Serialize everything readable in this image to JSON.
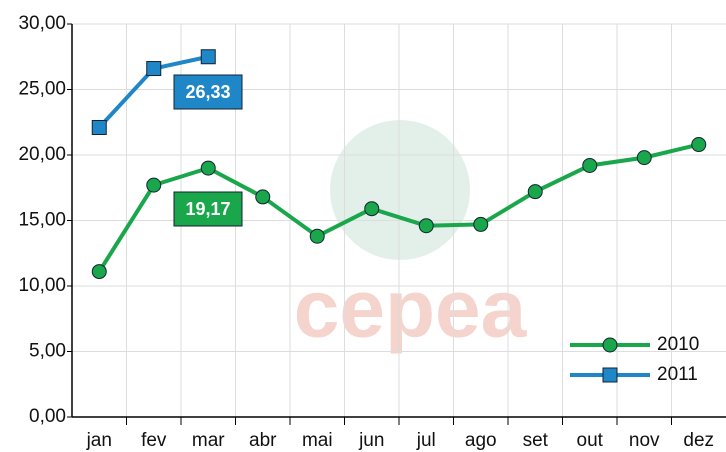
{
  "chart_data": {
    "type": "line",
    "categories": [
      "jan",
      "fev",
      "mar",
      "abr",
      "mai",
      "jun",
      "jul",
      "ago",
      "set",
      "out",
      "nov",
      "dez"
    ],
    "series": [
      {
        "name": "2010",
        "color": "#1aa64a",
        "marker": "circle",
        "values": [
          11.1,
          17.7,
          19.0,
          16.8,
          13.8,
          15.9,
          14.6,
          14.7,
          17.2,
          19.2,
          19.8,
          20.8
        ]
      },
      {
        "name": "2011",
        "color": "#1f87c8",
        "marker": "square",
        "values": [
          22.1,
          26.6,
          27.5,
          null,
          null,
          null,
          null,
          null,
          null,
          null,
          null,
          null
        ]
      }
    ],
    "annotations": [
      {
        "text": "26,33",
        "color": "#1f87c8"
      },
      {
        "text": "19,17",
        "color": "#1aa64a"
      }
    ],
    "watermark": "cepea",
    "ylim": [
      0,
      30
    ],
    "yticks": [
      {
        "value": 0,
        "label": "0,00"
      },
      {
        "value": 5,
        "label": "5,00"
      },
      {
        "value": 10,
        "label": "10,00"
      },
      {
        "value": 15,
        "label": "15,00"
      },
      {
        "value": 20,
        "label": "20,00"
      },
      {
        "value": 25,
        "label": "25,00"
      },
      {
        "value": 30,
        "label": "30,00"
      }
    ],
    "grid": true,
    "legend": "bottom-right"
  }
}
